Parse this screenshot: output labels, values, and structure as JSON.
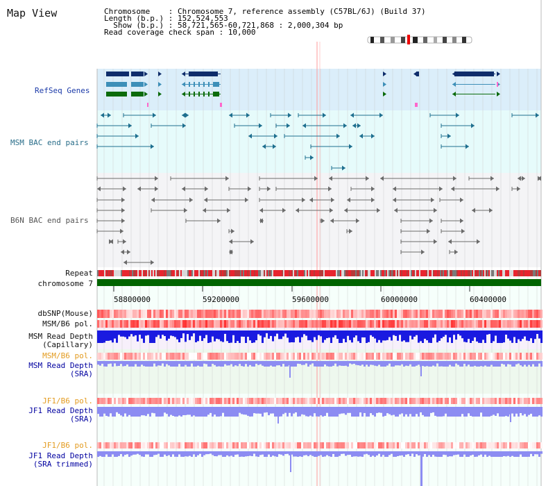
{
  "title": "Map View",
  "info_lines": [
    "Chromosome    : Chromosome 7, reference assembly (C57BL/6J) (Build 37)",
    "Length (b.p.) : 152,524,553",
    "  Show (b.p.) : 58,721,565-60,721,868 : 2,000,304 bp",
    "Read coverage check span : 10,000"
  ],
  "tracks": {
    "refseq": "RefSeq Genes",
    "msm_bac": "MSM BAC end pairs",
    "b6n_bac": "B6N BAC end pairs",
    "repeat": "Repeat",
    "chromosome": "chromosome 7",
    "dbsnp": "dbSNP(Mouse)",
    "msm_b6_pol_1": "MSM/B6 pol.",
    "msm_depth_cap_1": "MSM Read Depth",
    "msm_depth_cap_2": "(Capillary)",
    "msm_b6_pol_2": "MSM/B6 pol.",
    "msm_depth_sra_1": "MSM Read Depth",
    "msm_depth_sra_2": "(SRA)",
    "jf1_b6_pol_1": "JF1/B6 pol.",
    "jf1_depth_sra_1": "JF1 Read Depth",
    "jf1_depth_sra_2": "(SRA)",
    "jf1_b6_pol_2": "JF1/B6 pol.",
    "jf1_depth_trim_1": "JF1 Read Depth",
    "jf1_depth_trim_2": "(SRA trimmed)"
  },
  "axis_ticks": [
    "58800000",
    "59200000",
    "59600000",
    "60000000",
    "60400000"
  ],
  "colors": {
    "refseq_bg": "#dbeefa",
    "msm_bg": "#e6fbfb",
    "b6n_bg": "#f4f4f6",
    "chromosome": "#006400",
    "gene_navy": "#0f2d6b",
    "gene_steel": "#3d8fb8",
    "gene_green": "#0b6b0b",
    "msm_pair": "#1e6f8f",
    "b6n_pair": "#6b6b6b",
    "depth_cap": "#1a1ae0",
    "depth_sra": "#8c8cf2",
    "pol_red": "#ff2a2a",
    "grid": "#c8c8c8",
    "highlight": "#ff9999"
  }
}
